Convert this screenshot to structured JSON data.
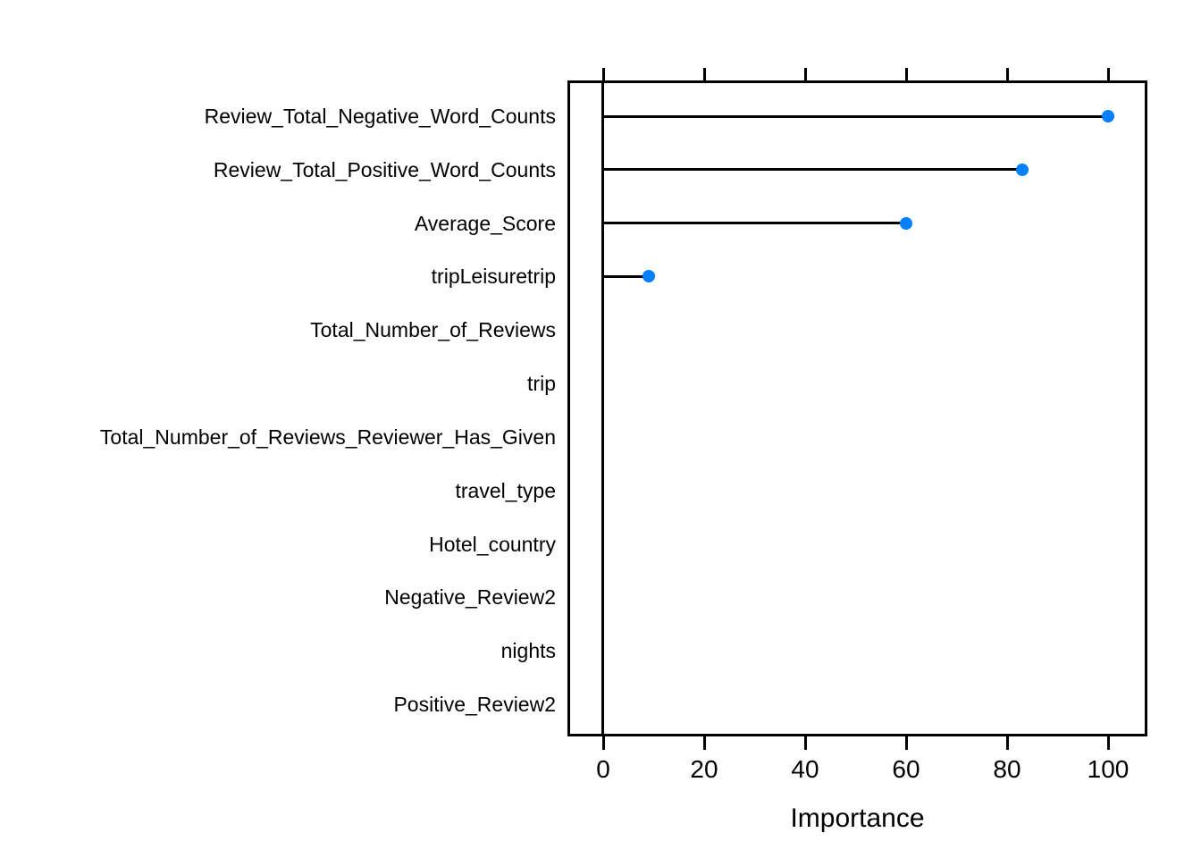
{
  "figure": {
    "background_color": "#ffffff",
    "line_color": "#000000",
    "dot_color": "#0080ff",
    "text_color": "#000000"
  },
  "chart_data": {
    "type": "scatter",
    "style": "lollipop-dotplot",
    "title": "",
    "xlabel": "Importance",
    "ylabel": "",
    "grid": false,
    "legend": false,
    "baseline_x": 0,
    "xlim": [
      -6.7,
      107.5
    ],
    "x_ticks": [
      0,
      20,
      40,
      60,
      80,
      100
    ],
    "categories": [
      "Review_Total_Negative_Word_Counts",
      "Review_Total_Positive_Word_Counts",
      "Average_Score",
      "tripLeisuretrip",
      "Total_Number_of_Reviews",
      "trip",
      "Total_Number_of_Reviews_Reviewer_Has_Given",
      "travel_type",
      "Hotel_country",
      "Negative_Review2",
      "nights",
      "Positive_Review2"
    ],
    "values": [
      100,
      83,
      60,
      9,
      null,
      null,
      null,
      null,
      null,
      null,
      null,
      null
    ]
  }
}
